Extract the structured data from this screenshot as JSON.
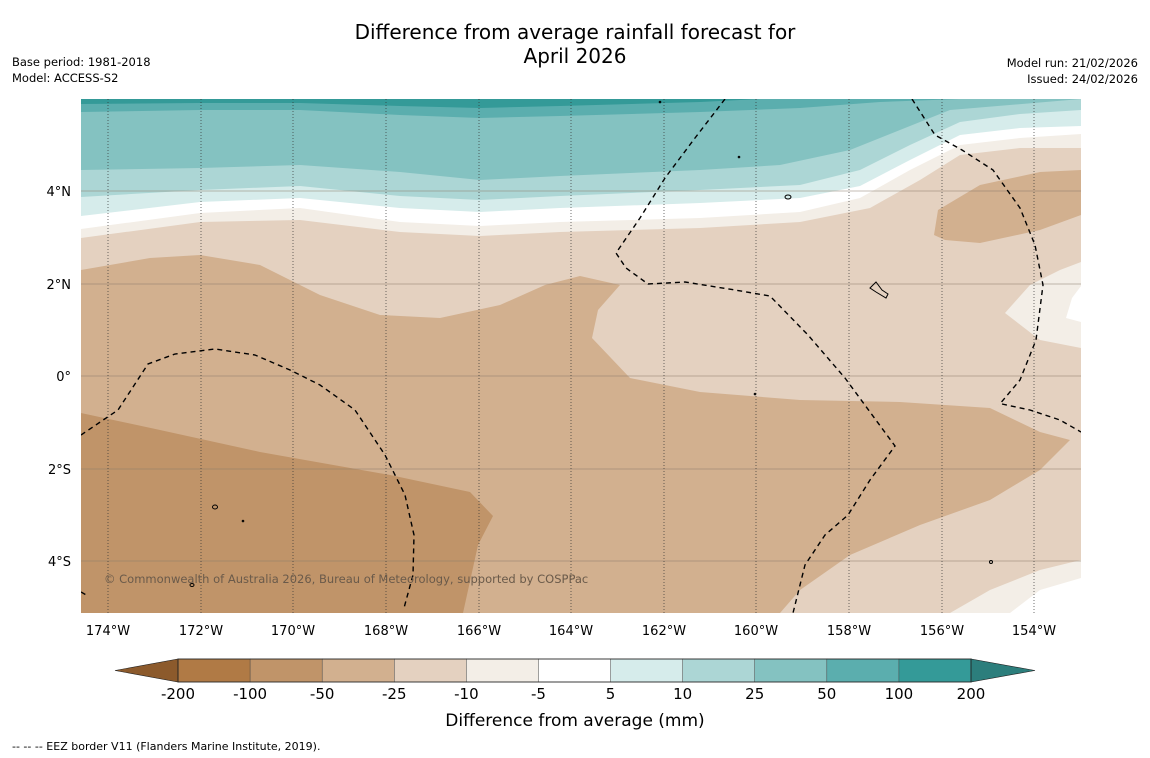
{
  "title_line1": "Difference from average rainfall forecast for",
  "title_line2": "April 2026",
  "base_period": "Base period: 1981-2018",
  "model": "Model: ACCESS-S2",
  "model_run": "Model run: 21/02/2026",
  "issued": "Issued: 24/02/2026",
  "copyright": "© Commonwealth of Australia 2026, Bureau of Meteorology, supported by COSPPac",
  "lat_labels": [
    "4°N",
    "2°N",
    "0°",
    "2°S",
    "4°S"
  ],
  "lon_labels": [
    "174°W",
    "172°W",
    "170°W",
    "168°W",
    "166°W",
    "164°W",
    "162°W",
    "160°W",
    "158°W",
    "156°W",
    "154°W"
  ],
  "colorbar": {
    "title": "Difference from average (mm)",
    "ticks": [
      "-200",
      "-100",
      "-50",
      "-25",
      "-10",
      "-5",
      "5",
      "10",
      "25",
      "50",
      "100",
      "200"
    ],
    "colors": [
      "#b07a45",
      "#c09469",
      "#d2b08f",
      "#e4d1c0",
      "#f3eee7",
      "#ffffff",
      "#d6eceb",
      "#acd6d5",
      "#84c2c1",
      "#5baeae",
      "#349a98"
    ],
    "under_color": "#8c5a2c",
    "over_color": "#2c7e7c"
  },
  "footnote": "--  --  -- EEZ border V11 (Flanders Marine Institute, 2019)."
}
